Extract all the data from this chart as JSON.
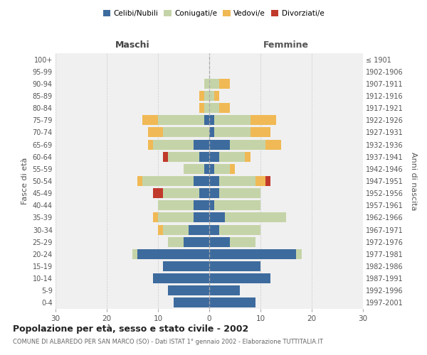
{
  "age_groups": [
    "100+",
    "95-99",
    "90-94",
    "85-89",
    "80-84",
    "75-79",
    "70-74",
    "65-69",
    "60-64",
    "55-59",
    "50-54",
    "45-49",
    "40-44",
    "35-39",
    "30-34",
    "25-29",
    "20-24",
    "15-19",
    "10-14",
    "5-9",
    "0-4"
  ],
  "birth_years": [
    "≤ 1901",
    "1902-1906",
    "1907-1911",
    "1912-1916",
    "1917-1921",
    "1922-1926",
    "1927-1931",
    "1932-1936",
    "1937-1941",
    "1942-1946",
    "1947-1951",
    "1952-1956",
    "1957-1961",
    "1962-1966",
    "1967-1971",
    "1972-1976",
    "1977-1981",
    "1982-1986",
    "1987-1991",
    "1992-1996",
    "1997-2001"
  ],
  "males": {
    "celibi": [
      0,
      0,
      0,
      0,
      0,
      1,
      0,
      3,
      2,
      1,
      3,
      2,
      3,
      3,
      4,
      5,
      14,
      9,
      11,
      8,
      7
    ],
    "coniugati": [
      0,
      0,
      1,
      1,
      1,
      9,
      9,
      8,
      6,
      4,
      10,
      7,
      7,
      7,
      5,
      3,
      1,
      0,
      0,
      0,
      0
    ],
    "vedovi": [
      0,
      0,
      0,
      1,
      1,
      3,
      3,
      1,
      0,
      0,
      1,
      0,
      0,
      1,
      1,
      0,
      0,
      0,
      0,
      0,
      0
    ],
    "divorziati": [
      0,
      0,
      0,
      0,
      0,
      0,
      0,
      0,
      1,
      0,
      0,
      2,
      0,
      0,
      0,
      0,
      0,
      0,
      0,
      0,
      0
    ]
  },
  "females": {
    "nubili": [
      0,
      0,
      0,
      0,
      0,
      1,
      1,
      4,
      2,
      1,
      2,
      2,
      1,
      3,
      2,
      4,
      17,
      10,
      12,
      6,
      9
    ],
    "coniugate": [
      0,
      0,
      2,
      1,
      2,
      7,
      7,
      7,
      5,
      3,
      7,
      8,
      9,
      12,
      8,
      5,
      1,
      0,
      0,
      0,
      0
    ],
    "vedove": [
      0,
      0,
      2,
      1,
      2,
      5,
      4,
      3,
      1,
      1,
      2,
      0,
      0,
      0,
      0,
      0,
      0,
      0,
      0,
      0,
      0
    ],
    "divorziate": [
      0,
      0,
      0,
      0,
      0,
      0,
      0,
      0,
      0,
      0,
      1,
      0,
      0,
      0,
      0,
      0,
      0,
      0,
      0,
      0,
      0
    ]
  },
  "color_celibi": "#3d6b9e",
  "color_coniugati": "#c5d4a8",
  "color_vedovi": "#f0b955",
  "color_divorziati": "#c0392b",
  "title": "Popolazione per età, sesso e stato civile - 2002",
  "subtitle": "COMUNE DI ALBAREDO PER SAN MARCO (SO) - Dati ISTAT 1° gennaio 2002 - Elaborazione TUTTITALIA.IT",
  "xlabel_left": "Maschi",
  "xlabel_right": "Femmine",
  "ylabel_left": "Fasce di età",
  "ylabel_right": "Anni di nascita",
  "xlim": 30,
  "bg_color": "#ffffff",
  "plot_bg_color": "#f0f0f0"
}
